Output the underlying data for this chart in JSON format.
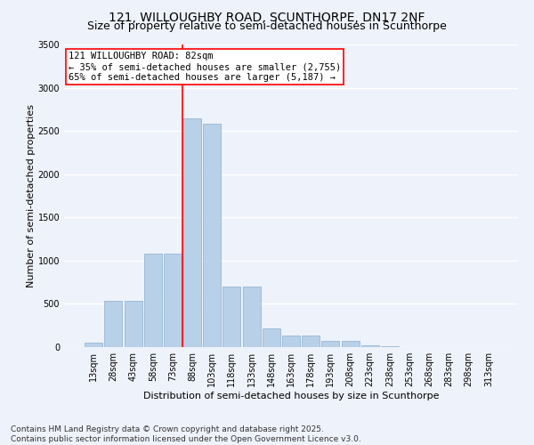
{
  "title_line1": "121, WILLOUGHBY ROAD, SCUNTHORPE, DN17 2NF",
  "title_line2": "Size of property relative to semi-detached houses in Scunthorpe",
  "xlabel": "Distribution of semi-detached houses by size in Scunthorpe",
  "ylabel": "Number of semi-detached properties",
  "bar_labels": [
    "13sqm",
    "28sqm",
    "43sqm",
    "58sqm",
    "73sqm",
    "88sqm",
    "103sqm",
    "118sqm",
    "133sqm",
    "148sqm",
    "163sqm",
    "178sqm",
    "193sqm",
    "208sqm",
    "223sqm",
    "238sqm",
    "253sqm",
    "268sqm",
    "283sqm",
    "298sqm",
    "313sqm"
  ],
  "bar_values": [
    50,
    540,
    540,
    1080,
    1080,
    2650,
    2580,
    700,
    700,
    220,
    130,
    130,
    70,
    70,
    20,
    10,
    0,
    0,
    0,
    0,
    0
  ],
  "bar_color": "#b8d0e8",
  "bar_edge_color": "#8ab0d0",
  "vline_color": "red",
  "annotation_text": "121 WILLOUGHBY ROAD: 82sqm\n← 35% of semi-detached houses are smaller (2,755)\n65% of semi-detached houses are larger (5,187) →",
  "annotation_box_color": "white",
  "annotation_box_edge_color": "red",
  "ylim": [
    0,
    3500
  ],
  "yticks": [
    0,
    500,
    1000,
    1500,
    2000,
    2500,
    3000,
    3500
  ],
  "footer_line1": "Contains HM Land Registry data © Crown copyright and database right 2025.",
  "footer_line2": "Contains public sector information licensed under the Open Government Licence v3.0.",
  "background_color": "#eef2fa",
  "grid_color": "#ffffff",
  "title_fontsize": 10,
  "subtitle_fontsize": 9,
  "axis_label_fontsize": 8,
  "tick_fontsize": 7,
  "annotation_fontsize": 7.5,
  "footer_fontsize": 6.5,
  "vline_x": 4.5
}
